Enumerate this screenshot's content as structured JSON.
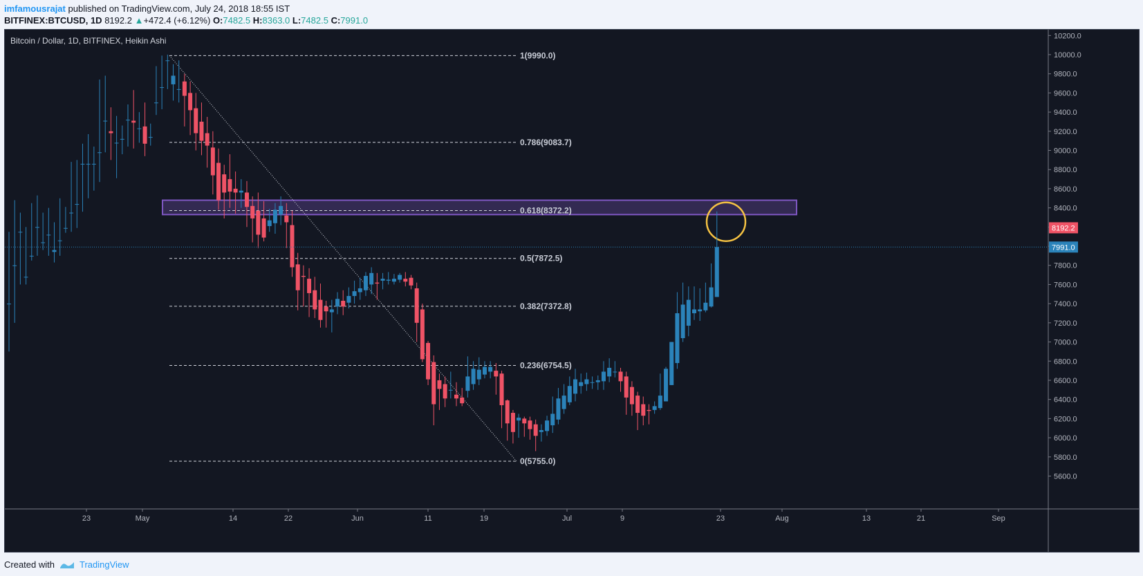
{
  "header": {
    "username": "imfamousrajat",
    "published_text": "published on TradingView.com, July 24, 2018 18:55 IST",
    "symbol": "BITFINEX:BTCUSD, 1D",
    "last": "8192.2",
    "change": "+472.4 (+6.12%)",
    "o_label": "O:",
    "o_val": "7482.5",
    "h_label": "H:",
    "h_val": "8363.0",
    "l_label": "L:",
    "l_val": "7482.5",
    "c_label": "C:",
    "c_val": "7991.0"
  },
  "footer": {
    "created_with": "Created with",
    "brand": "TradingView"
  },
  "colors": {
    "up": "#2b83ba",
    "down": "#ef5366",
    "bg": "#131722",
    "zone": "#7e57c2",
    "circle": "#f6c343",
    "price_tag": "#ef5366",
    "line_tag": "#2b83ba"
  },
  "chart_data": {
    "type": "candlestick",
    "title": "Bitcoin / Dollar, 1D, BITFINEX, Heikin Ashi",
    "xlabels": [
      "23",
      "May",
      "14",
      "22",
      "Jun",
      "11",
      "19",
      "Jul",
      "9",
      "23",
      "Aug",
      "13",
      "21",
      "Sep"
    ],
    "yticks": [
      5600,
      5800,
      6000,
      6200,
      6400,
      6600,
      6800,
      7000,
      7200,
      7400,
      7600,
      7800,
      8000,
      8200,
      8400,
      8600,
      8800,
      9000,
      9200,
      9400,
      9600,
      9800,
      10000,
      10200
    ],
    "ylim": [
      5500,
      10250
    ],
    "fib_levels": [
      {
        "label": "1(9990.0)",
        "value": 9990.0
      },
      {
        "label": "0.786(9083.7)",
        "value": 9083.7
      },
      {
        "label": "0.618(8372.2)",
        "value": 8372.2
      },
      {
        "label": "0.5(7872.5)",
        "value": 7872.5
      },
      {
        "label": "0.382(7372.8)",
        "value": 7372.8
      },
      {
        "label": "0.236(6754.5)",
        "value": 6754.5
      },
      {
        "label": "0(5755.0)",
        "value": 5755.0
      }
    ],
    "zone": {
      "top": 8480,
      "bottom": 8330
    },
    "price_tags": [
      {
        "label": "8192.2",
        "value": 8192.2,
        "color": "#ef5366"
      },
      {
        "label": "7991.0",
        "value": 7991.0,
        "color": "#2b83ba"
      }
    ],
    "trendline": [
      9990.0,
      5755.0
    ],
    "candles": [
      [
        7400,
        7400,
        8150,
        6900
      ],
      [
        7800,
        7800,
        8480,
        7200
      ],
      [
        8150,
        8150,
        8350,
        7600
      ],
      [
        7680,
        7680,
        8200,
        7600
      ],
      [
        7900,
        7900,
        8450,
        7850
      ],
      [
        8200,
        8200,
        8530,
        7900
      ],
      [
        8040,
        8040,
        8350,
        7960
      ],
      [
        8120,
        8120,
        8400,
        7900
      ],
      [
        7940,
        7960,
        8250,
        7830
      ],
      [
        8060,
        8060,
        8500,
        7900
      ],
      [
        8190,
        8190,
        8410,
        8140
      ],
      [
        8350,
        8350,
        8880,
        8150
      ],
      [
        8440,
        8440,
        8900,
        8190
      ],
      [
        8860,
        8860,
        9070,
        8360
      ],
      [
        8860,
        8860,
        9170,
        8500
      ],
      [
        8860,
        8860,
        9040,
        8580
      ],
      [
        8980,
        8980,
        9740,
        8670
      ],
      [
        9310,
        9310,
        9780,
        8980
      ],
      [
        9200,
        9180,
        9450,
        8900
      ],
      [
        9080,
        9080,
        9360,
        8710
      ],
      [
        9120,
        9120,
        9260,
        8960
      ],
      [
        9320,
        9320,
        9480,
        9040
      ],
      [
        9310,
        9290,
        9630,
        9020
      ],
      [
        9230,
        9230,
        9400,
        9080
      ],
      [
        9250,
        9070,
        9500,
        8940
      ],
      [
        9140,
        9140,
        9280,
        9050
      ],
      [
        9500,
        9500,
        9880,
        9370
      ],
      [
        9660,
        9660,
        9990,
        9430
      ],
      [
        9940,
        9940,
        10000,
        9640
      ],
      [
        9690,
        9780,
        9900,
        9520
      ],
      [
        9640,
        9640,
        9940,
        9500
      ],
      [
        9720,
        9570,
        9800,
        9250
      ],
      [
        9600,
        9420,
        9720,
        9160
      ],
      [
        9440,
        9180,
        9600,
        9000
      ],
      [
        9300,
        9100,
        9500,
        8950
      ],
      [
        9180,
        9050,
        9350,
        8820
      ],
      [
        9030,
        8740,
        9200,
        8540
      ],
      [
        8870,
        8480,
        9020,
        8380
      ],
      [
        8750,
        8560,
        8850,
        8290
      ],
      [
        8700,
        8570,
        8960,
        8400
      ],
      [
        8600,
        8560,
        8780,
        8340
      ],
      [
        8560,
        8580,
        8700,
        8400
      ],
      [
        8560,
        8410,
        8680,
        8200
      ],
      [
        8420,
        8290,
        8520,
        8040
      ],
      [
        8370,
        8120,
        8560,
        7980
      ],
      [
        8290,
        8090,
        8470,
        8050
      ],
      [
        8210,
        8270,
        8390,
        8150
      ],
      [
        8240,
        8380,
        8450,
        8130
      ],
      [
        8330,
        8420,
        8520,
        8220
      ],
      [
        8320,
        8250,
        8450,
        7980
      ],
      [
        8220,
        7780,
        8370,
        7680
      ],
      [
        7810,
        7540,
        7930,
        7330
      ],
      [
        7690,
        7680,
        7800,
        7370
      ],
      [
        7660,
        7510,
        7770,
        7260
      ],
      [
        7540,
        7340,
        7680,
        7250
      ],
      [
        7440,
        7230,
        7610,
        7150
      ],
      [
        7370,
        7320,
        7430,
        7150
      ],
      [
        7310,
        7340,
        7440,
        7100
      ],
      [
        7370,
        7450,
        7520,
        7290
      ],
      [
        7430,
        7370,
        7540,
        7280
      ],
      [
        7410,
        7480,
        7570,
        7350
      ],
      [
        7480,
        7530,
        7640,
        7400
      ],
      [
        7520,
        7560,
        7670,
        7440
      ],
      [
        7540,
        7690,
        7730,
        7480
      ],
      [
        7600,
        7720,
        7780,
        7500
      ],
      [
        7620,
        7610,
        7720,
        7440
      ],
      [
        7640,
        7660,
        7720,
        7550
      ],
      [
        7640,
        7650,
        7730,
        7600
      ],
      [
        7630,
        7660,
        7710,
        7600
      ],
      [
        7650,
        7700,
        7720,
        7620
      ],
      [
        7660,
        7630,
        7730,
        7580
      ],
      [
        7670,
        7590,
        7700,
        7550
      ],
      [
        7560,
        7200,
        7620,
        7000
      ],
      [
        7340,
        6820,
        7400,
        6790
      ],
      [
        6990,
        6610,
        7010,
        6550
      ],
      [
        6790,
        6350,
        6860,
        6130
      ],
      [
        6600,
        6510,
        6670,
        6290
      ],
      [
        6560,
        6410,
        6640,
        6320
      ],
      [
        6500,
        6500,
        6690,
        6410
      ],
      [
        6450,
        6410,
        6580,
        6330
      ],
      [
        6420,
        6360,
        6520,
        6330
      ],
      [
        6490,
        6640,
        6850,
        6420
      ],
      [
        6560,
        6720,
        6800,
        6500
      ],
      [
        6610,
        6710,
        6840,
        6550
      ],
      [
        6660,
        6740,
        6800,
        6620
      ],
      [
        6690,
        6740,
        6800,
        6620
      ],
      [
        6700,
        6640,
        6780,
        6450
      ],
      [
        6670,
        6340,
        6700,
        6100
      ],
      [
        6390,
        6150,
        6400,
        5970
      ],
      [
        6260,
        6060,
        6290,
        5940
      ],
      [
        6180,
        6210,
        6250,
        6000
      ],
      [
        6200,
        6150,
        6220,
        6010
      ],
      [
        6180,
        6090,
        6220,
        5980
      ],
      [
        6140,
        6020,
        6190,
        5860
      ],
      [
        6060,
        6080,
        6140,
        5960
      ],
      [
        6070,
        6180,
        6230,
        6020
      ],
      [
        6130,
        6250,
        6430,
        6050
      ],
      [
        6190,
        6410,
        6520,
        6140
      ],
      [
        6300,
        6440,
        6560,
        6250
      ],
      [
        6370,
        6540,
        6640,
        6340
      ],
      [
        6460,
        6610,
        6720,
        6380
      ],
      [
        6540,
        6580,
        6670,
        6460
      ],
      [
        6560,
        6610,
        6680,
        6490
      ],
      [
        6580,
        6580,
        6640,
        6510
      ],
      [
        6580,
        6600,
        6650,
        6500
      ],
      [
        6590,
        6690,
        6800,
        6500
      ],
      [
        6640,
        6730,
        6830,
        6580
      ],
      [
        6690,
        6690,
        6800,
        6630
      ],
      [
        6690,
        6590,
        6730,
        6480
      ],
      [
        6640,
        6420,
        6690,
        6240
      ],
      [
        6530,
        6350,
        6590,
        6230
      ],
      [
        6440,
        6260,
        6480,
        6080
      ],
      [
        6350,
        6230,
        6430,
        6130
      ],
      [
        6290,
        6280,
        6350,
        6140
      ],
      [
        6290,
        6330,
        6380,
        6250
      ],
      [
        6310,
        6440,
        6670,
        6290
      ],
      [
        6380,
        6720,
        6740,
        6380
      ],
      [
        6550,
        7000,
        7000,
        6550
      ],
      [
        6780,
        7300,
        7520,
        6720
      ],
      [
        7040,
        7390,
        7620,
        7000
      ],
      [
        7170,
        7440,
        7580,
        7060
      ],
      [
        7300,
        7340,
        7580,
        7230
      ],
      [
        7320,
        7340,
        7560,
        7220
      ],
      [
        7330,
        7410,
        7620,
        7310
      ],
      [
        7370,
        7570,
        7820,
        7360
      ],
      [
        7470,
        7991,
        8363,
        7470
      ]
    ]
  }
}
